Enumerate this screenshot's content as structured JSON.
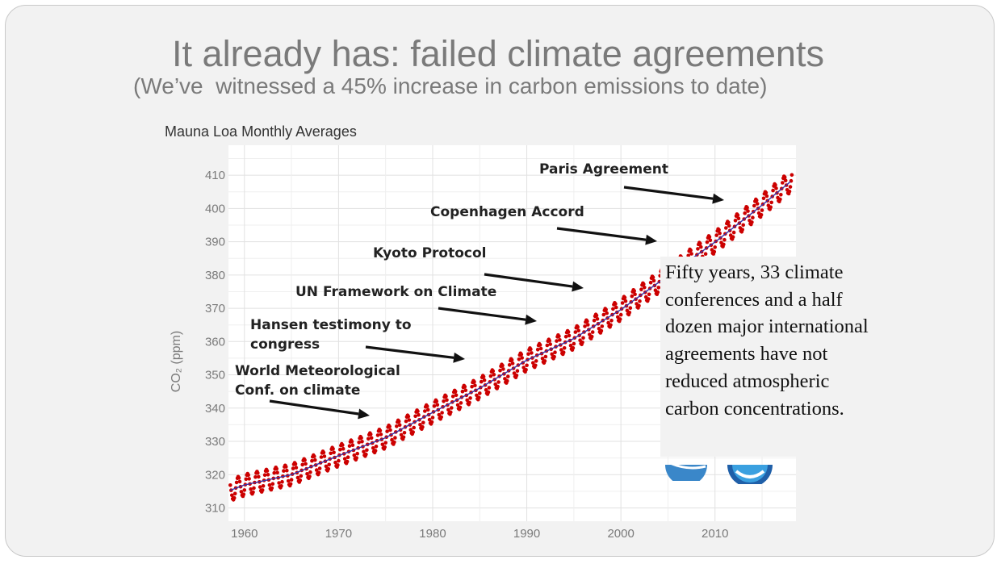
{
  "slide": {
    "title": "It already has: failed climate agreements",
    "subtitle": "(We’ve  witnessed a 45% increase in carbon emissions to date)",
    "callout": "Fifty years, 33 climate conferences and a half dozen major international agreements  have not reduced atmospheric carbon concentrations."
  },
  "chart_data": {
    "type": "line",
    "title": "Mauna Loa Monthly Averages",
    "xlabel": "",
    "ylabel": "CO₂ (ppm)",
    "xlim": [
      1958.3,
      2018.6
    ],
    "ylim": [
      306,
      419
    ],
    "x_ticks": [
      "1960",
      "1970",
      "1980",
      "1990",
      "2000",
      "2010"
    ],
    "y_ticks": [
      "310",
      "320",
      "330",
      "340",
      "350",
      "360",
      "370",
      "380",
      "390",
      "400",
      "410"
    ],
    "grid": true,
    "series": [
      {
        "kind": "monthly points",
        "color": "#cc0000",
        "x_start": 1958.5,
        "x_end": 2018.2,
        "seasonal_amplitude_ppm": 3.2,
        "trend_points": [
          [
            1958.5,
            315.3
          ],
          [
            1960,
            316.9
          ],
          [
            1965,
            320.0
          ],
          [
            1970,
            325.7
          ],
          [
            1975,
            331.1
          ],
          [
            1980,
            338.7
          ],
          [
            1985,
            346.0
          ],
          [
            1990,
            354.4
          ],
          [
            1995,
            360.9
          ],
          [
            2000,
            369.6
          ],
          [
            2005,
            379.8
          ],
          [
            2010,
            389.9
          ],
          [
            2015,
            401.0
          ],
          [
            2018.2,
            408.5
          ]
        ]
      },
      {
        "kind": "deseasonalized trend line",
        "color": "#3333aa",
        "trend_points": "same as monthly trend_points"
      }
    ],
    "annotations": [
      {
        "text": "World Meteorological\nConf. on climate",
        "year": 1979
      },
      {
        "text": "Hansen testimony to\ncongress",
        "year": 1988
      },
      {
        "text": "UN Framework on Climate",
        "year": 1992
      },
      {
        "text": "Kyoto Protocol",
        "year": 1997
      },
      {
        "text": "Copenhagen Accord",
        "year": 2009
      },
      {
        "text": "Paris Agreement",
        "year": 2015
      }
    ]
  },
  "colors": {
    "slide_background": "#f2f2f2",
    "plot_background": "#ffffff",
    "title_gray": "#7a7a7a",
    "grid": "#e1e1e1",
    "data_red": "#cc0000",
    "trend_blue": "#3333aa",
    "arrow": "#111111"
  }
}
